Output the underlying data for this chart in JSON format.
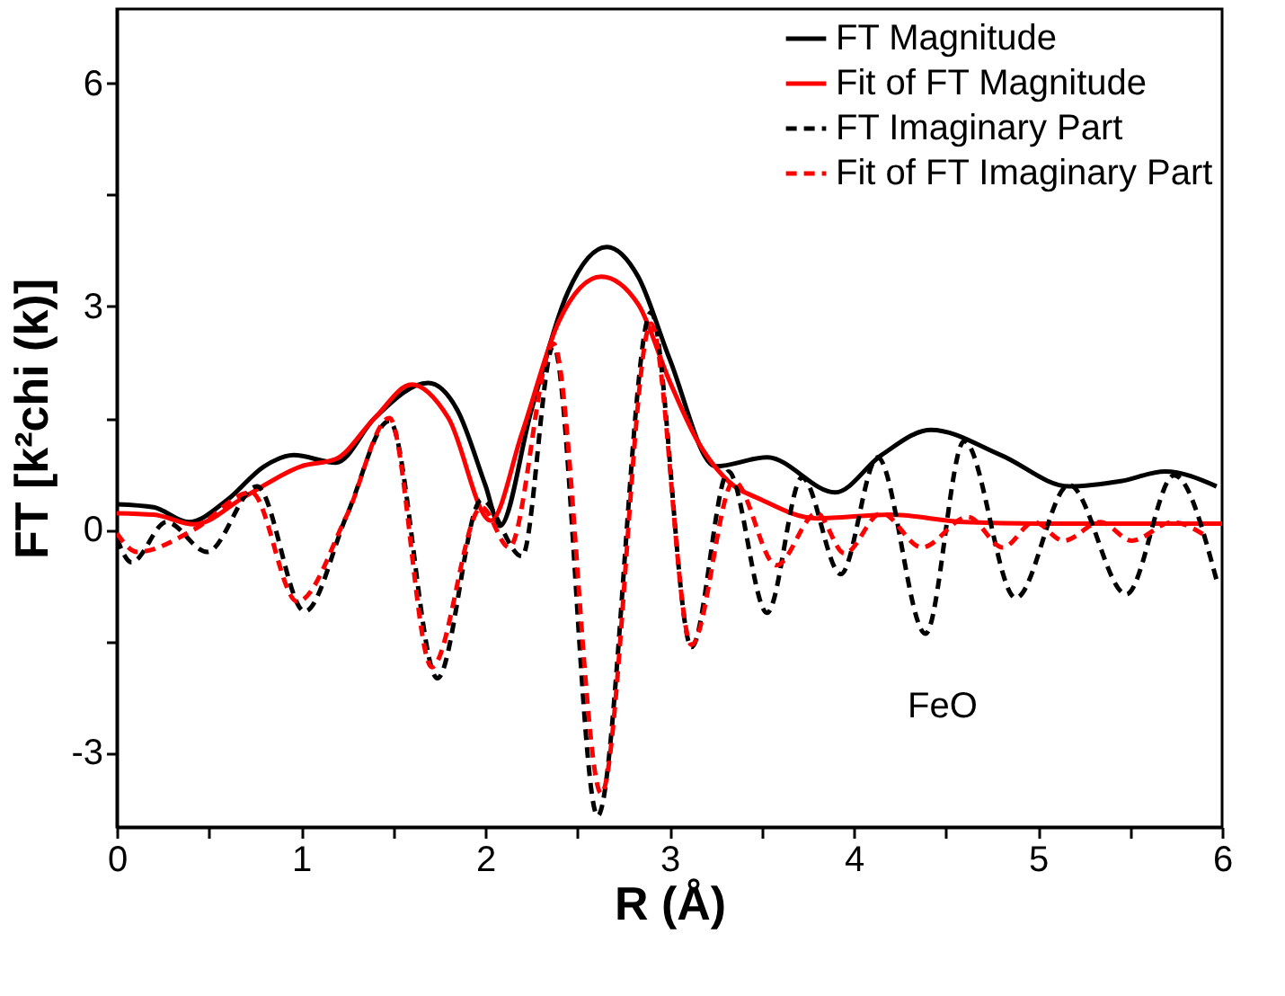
{
  "chart_data": {
    "type": "line",
    "xlabel": "R (Å)",
    "ylabel": "FT [k²chi (k)]",
    "xlim": [
      0,
      6
    ],
    "xticks": [
      0,
      {
        "value": 0.5,
        "label": null
      },
      1,
      {
        "value": 1.5,
        "label": null
      },
      2,
      {
        "value": 2.5,
        "label": null
      },
      3,
      {
        "value": 3.5,
        "label": null
      },
      4,
      {
        "value": 4.5,
        "label": null
      },
      5,
      {
        "value": 5.5,
        "label": null
      },
      6
    ],
    "ylim": [
      -4,
      7
    ],
    "yticks": [
      -3,
      {
        "value": -1.5,
        "label": null
      },
      0,
      {
        "value": 1.5,
        "label": null
      },
      3,
      {
        "value": 4.5,
        "label": null
      },
      6
    ],
    "grid": false,
    "legend": "top right",
    "marker": "none",
    "annotations": [
      "FeO"
    ],
    "series": [
      {
        "name": "FT Magnitude",
        "color": "#000000",
        "line_style": "solid",
        "x": [
          0,
          0.2,
          0.39,
          0.6,
          0.8,
          0.96,
          1.19,
          1.4,
          1.69,
          1.85,
          2.0,
          2.08,
          2.25,
          2.45,
          2.66,
          2.83,
          3.0,
          3.25,
          3.53,
          3.9,
          4.15,
          4.42,
          4.8,
          5.17,
          5.45,
          5.69,
          5.97
        ],
        "values": [
          0.34,
          0.3,
          0.1,
          0.4,
          0.85,
          1.0,
          0.9,
          1.5,
          1.97,
          1.6,
          0.6,
          0.05,
          1.6,
          3.2,
          3.8,
          3.4,
          2.3,
          0.85,
          0.97,
          0.5,
          1.0,
          1.34,
          1.0,
          0.58,
          0.65,
          0.78,
          0.58
        ]
      },
      {
        "name": "Fit of FT Magnitude",
        "color": "#ff0000",
        "line_style": "solid",
        "x": [
          0,
          0.2,
          0.42,
          0.7,
          1.0,
          1.19,
          1.4,
          1.6,
          1.8,
          2.03,
          2.2,
          2.4,
          2.63,
          2.83,
          3.0,
          3.15,
          3.32,
          3.5,
          3.8,
          4.2,
          4.6,
          5.0,
          5.5,
          6.0
        ],
        "values": [
          0.22,
          0.2,
          0.07,
          0.45,
          0.85,
          0.95,
          1.5,
          1.95,
          1.5,
          0.12,
          1.3,
          2.8,
          3.4,
          3.03,
          2.0,
          1.2,
          0.65,
          0.4,
          0.15,
          0.2,
          0.1,
          0.08,
          0.08,
          0.08
        ]
      },
      {
        "name": "FT Imaginary Part",
        "color": "#000000",
        "line_style": "dashed",
        "x": [
          0,
          0.08,
          0.27,
          0.49,
          0.76,
          1.02,
          1.25,
          1.48,
          1.74,
          1.98,
          2.2,
          2.37,
          2.61,
          2.9,
          3.12,
          3.32,
          3.53,
          3.72,
          3.93,
          4.13,
          4.39,
          4.6,
          4.88,
          5.17,
          5.48,
          5.74,
          5.97
        ],
        "values": [
          -0.12,
          -0.44,
          0.1,
          -0.3,
          0.58,
          -1.1,
          0.2,
          1.46,
          -2.0,
          0.4,
          -0.36,
          2.47,
          -3.85,
          2.92,
          -1.58,
          0.78,
          -1.12,
          0.7,
          -0.6,
          0.97,
          -1.4,
          1.19,
          -0.92,
          0.6,
          -0.87,
          0.73,
          -0.68
        ]
      },
      {
        "name": "Fit of FT Imaginary Part",
        "color": "#ff0000",
        "line_style": "dashed",
        "x": [
          0,
          0.11,
          0.42,
          0.73,
          0.98,
          1.25,
          1.48,
          1.71,
          1.98,
          2.13,
          2.37,
          2.63,
          2.9,
          3.12,
          3.35,
          3.58,
          3.8,
          3.95,
          4.15,
          4.37,
          4.62,
          4.81,
          4.98,
          5.14,
          5.34,
          5.51,
          5.73,
          5.92
        ],
        "values": [
          -0.05,
          -0.3,
          0.0,
          0.5,
          -0.97,
          0.2,
          1.5,
          -1.85,
          0.3,
          -0.24,
          2.5,
          -3.55,
          2.77,
          -1.55,
          0.65,
          -0.48,
          0.22,
          -0.32,
          0.22,
          -0.24,
          0.17,
          -0.24,
          0.1,
          -0.15,
          0.1,
          -0.15,
          0.1,
          -0.1
        ]
      }
    ]
  }
}
